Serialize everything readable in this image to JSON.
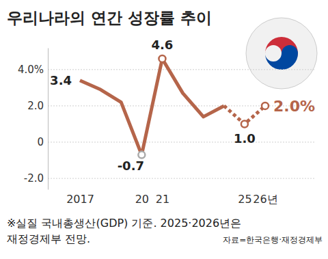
{
  "chart_data": {
    "type": "line",
    "title": "우리나라의 연간 성장률 추이",
    "categories": [
      "2017",
      null,
      null,
      "20",
      "21",
      null,
      null,
      null,
      "25",
      "26년"
    ],
    "series": [
      {
        "color": "#b5654a",
        "line_style": "solid",
        "marker": "circle",
        "values": [
          3.4,
          2.9,
          2.2,
          -0.7,
          4.6,
          2.7,
          1.4,
          2.0,
          null,
          null
        ],
        "value_labels": [
          "3.4",
          null,
          null,
          "-0.7",
          "4.6",
          null,
          null,
          null,
          null,
          null
        ]
      },
      {
        "color": "#b5654a",
        "line_style": "dotted",
        "marker": "circle",
        "values": [
          null,
          null,
          null,
          null,
          null,
          null,
          null,
          2.0,
          1.0,
          2.0
        ],
        "value_labels": [
          null,
          null,
          null,
          null,
          null,
          null,
          null,
          null,
          "1.0",
          "2.0%"
        ]
      }
    ],
    "ylim": [
      -2.6,
      5.2
    ],
    "yticks": [
      {
        "value": -2,
        "label": "-2.0"
      },
      0,
      {
        "value": 2,
        "label": "2.0"
      },
      {
        "value": 4,
        "label": "4.0%"
      }
    ],
    "grid": true,
    "data_labels": true,
    "notes": [
      "※실질 국내총생산(GDP) 기준. 2025·2026년은",
      "재정경제부 전망."
    ],
    "source": "자료=한국은행·재정경제부"
  }
}
